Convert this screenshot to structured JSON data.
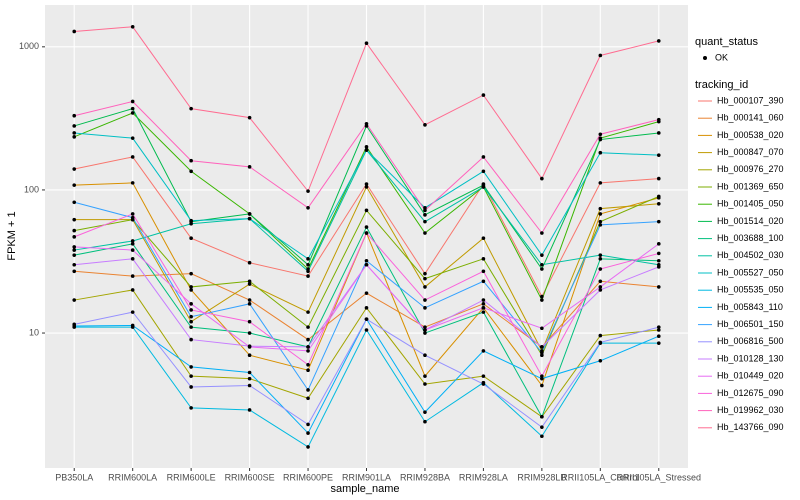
{
  "chart_data": {
    "type": "line",
    "x_label": "sample_name",
    "y_label": "FPKM + 1",
    "categories": [
      "PB350LA",
      "RRIM600LA",
      "RRIM600LE",
      "RRIM600SE",
      "RRIM600PE",
      "RRIM901LA",
      "RRIM928BA",
      "RRIM928LA",
      "RRIM928LB",
      "RRII105LA_Control",
      "RRII105LA_Stressed"
    ],
    "log_scale": true,
    "grid": true,
    "ylim": [
      1.14,
      1960
    ],
    "yticks": [
      10,
      100,
      1000
    ],
    "shape_legend": {
      "title": "quant_status",
      "labels": [
        "OK"
      ]
    },
    "color_legend_title": "tracking_id",
    "series": [
      {
        "name": "Hb_000107_390",
        "color": "#F8766D",
        "values": [
          140,
          170,
          46,
          31,
          25,
          110,
          26,
          110,
          18,
          112,
          120
        ]
      },
      {
        "name": "Hb_000141_060",
        "color": "#EA8331",
        "values": [
          27,
          25,
          26,
          17,
          9,
          19,
          11,
          16,
          8,
          23,
          21
        ]
      },
      {
        "name": "Hb_000538_020",
        "color": "#D89000",
        "values": [
          108,
          112,
          20,
          7,
          5.5,
          50,
          5,
          15,
          4.3,
          68,
          88
        ]
      },
      {
        "name": "Hb_000847_070",
        "color": "#C09B00",
        "values": [
          62,
          62,
          12,
          22,
          14,
          105,
          21,
          46,
          7.5,
          74,
          80
        ]
      },
      {
        "name": "Hb_000976_270",
        "color": "#A3A500",
        "values": [
          17,
          20,
          5,
          4.8,
          3.5,
          15,
          4.4,
          5,
          2.6,
          9.6,
          10.5
        ]
      },
      {
        "name": "Hb_001369_650",
        "color": "#7CAE00",
        "values": [
          52,
          62,
          21,
          23,
          11,
          72,
          24,
          33,
          7,
          60,
          90
        ]
      },
      {
        "name": "Hb_001405_050",
        "color": "#39B600",
        "values": [
          235,
          345,
          135,
          68,
          28,
          200,
          50,
          105,
          17,
          230,
          300
        ]
      },
      {
        "name": "Hb_001514_020",
        "color": "#00BB4E",
        "values": [
          280,
          370,
          60,
          68,
          30,
          280,
          67,
          108,
          28,
          225,
          250
        ]
      },
      {
        "name": "Hb_003688_100",
        "color": "#00BF7D",
        "values": [
          35,
          42,
          11,
          10,
          8,
          55,
          10,
          14,
          2.6,
          33,
          32
        ]
      },
      {
        "name": "Hb_004502_030",
        "color": "#00C1A3",
        "values": [
          38,
          44,
          58,
          63,
          27,
          190,
          60,
          105,
          30,
          35,
          30
        ]
      },
      {
        "name": "Hb_005527_050",
        "color": "#00BFC4",
        "values": [
          250,
          230,
          61,
          63,
          33,
          190,
          75,
          135,
          35,
          182,
          175
        ]
      },
      {
        "name": "Hb_005535_050",
        "color": "#00BAE0",
        "values": [
          11,
          11,
          3,
          2.9,
          1.6,
          10.5,
          2.4,
          4.5,
          1.9,
          8.5,
          8.5
        ]
      },
      {
        "name": "Hb_005843_110",
        "color": "#00B0F6",
        "values": [
          11.2,
          11.3,
          5.8,
          5.3,
          2,
          12.5,
          2.8,
          7.5,
          4.8,
          6.4,
          9.5
        ]
      },
      {
        "name": "Hb_006501_150",
        "color": "#35A2FF",
        "values": [
          82,
          64,
          13,
          16,
          4,
          32,
          15,
          23,
          7.3,
          57,
          60
        ]
      },
      {
        "name": "Hb_006816_500",
        "color": "#9590FF",
        "values": [
          11.5,
          14,
          4.2,
          4.3,
          2.3,
          12.5,
          7,
          4.4,
          2.2,
          8.6,
          11
        ]
      },
      {
        "name": "Hb_010128_130",
        "color": "#C77CFF",
        "values": [
          30,
          33,
          9,
          8.1,
          8,
          30,
          10.5,
          17,
          8,
          20,
          29
        ]
      },
      {
        "name": "Hb_010449_020",
        "color": "#E76BF3",
        "values": [
          40,
          38,
          16,
          8,
          7.5,
          30,
          10.5,
          15,
          10.8,
          21,
          42
        ]
      },
      {
        "name": "Hb_012675_090",
        "color": "#FA62DB",
        "values": [
          47,
          68,
          14.5,
          12,
          6,
          50,
          17,
          27,
          5,
          28,
          36
        ]
      },
      {
        "name": "Hb_019962_030",
        "color": "#FF62BC",
        "values": [
          330,
          415,
          160,
          145,
          75,
          290,
          72,
          170,
          50,
          245,
          310
        ]
      },
      {
        "name": "Hb_143766_090",
        "color": "#FF6C91",
        "values": [
          1280,
          1380,
          370,
          320,
          98,
          1060,
          285,
          460,
          120,
          870,
          1100
        ]
      }
    ]
  }
}
